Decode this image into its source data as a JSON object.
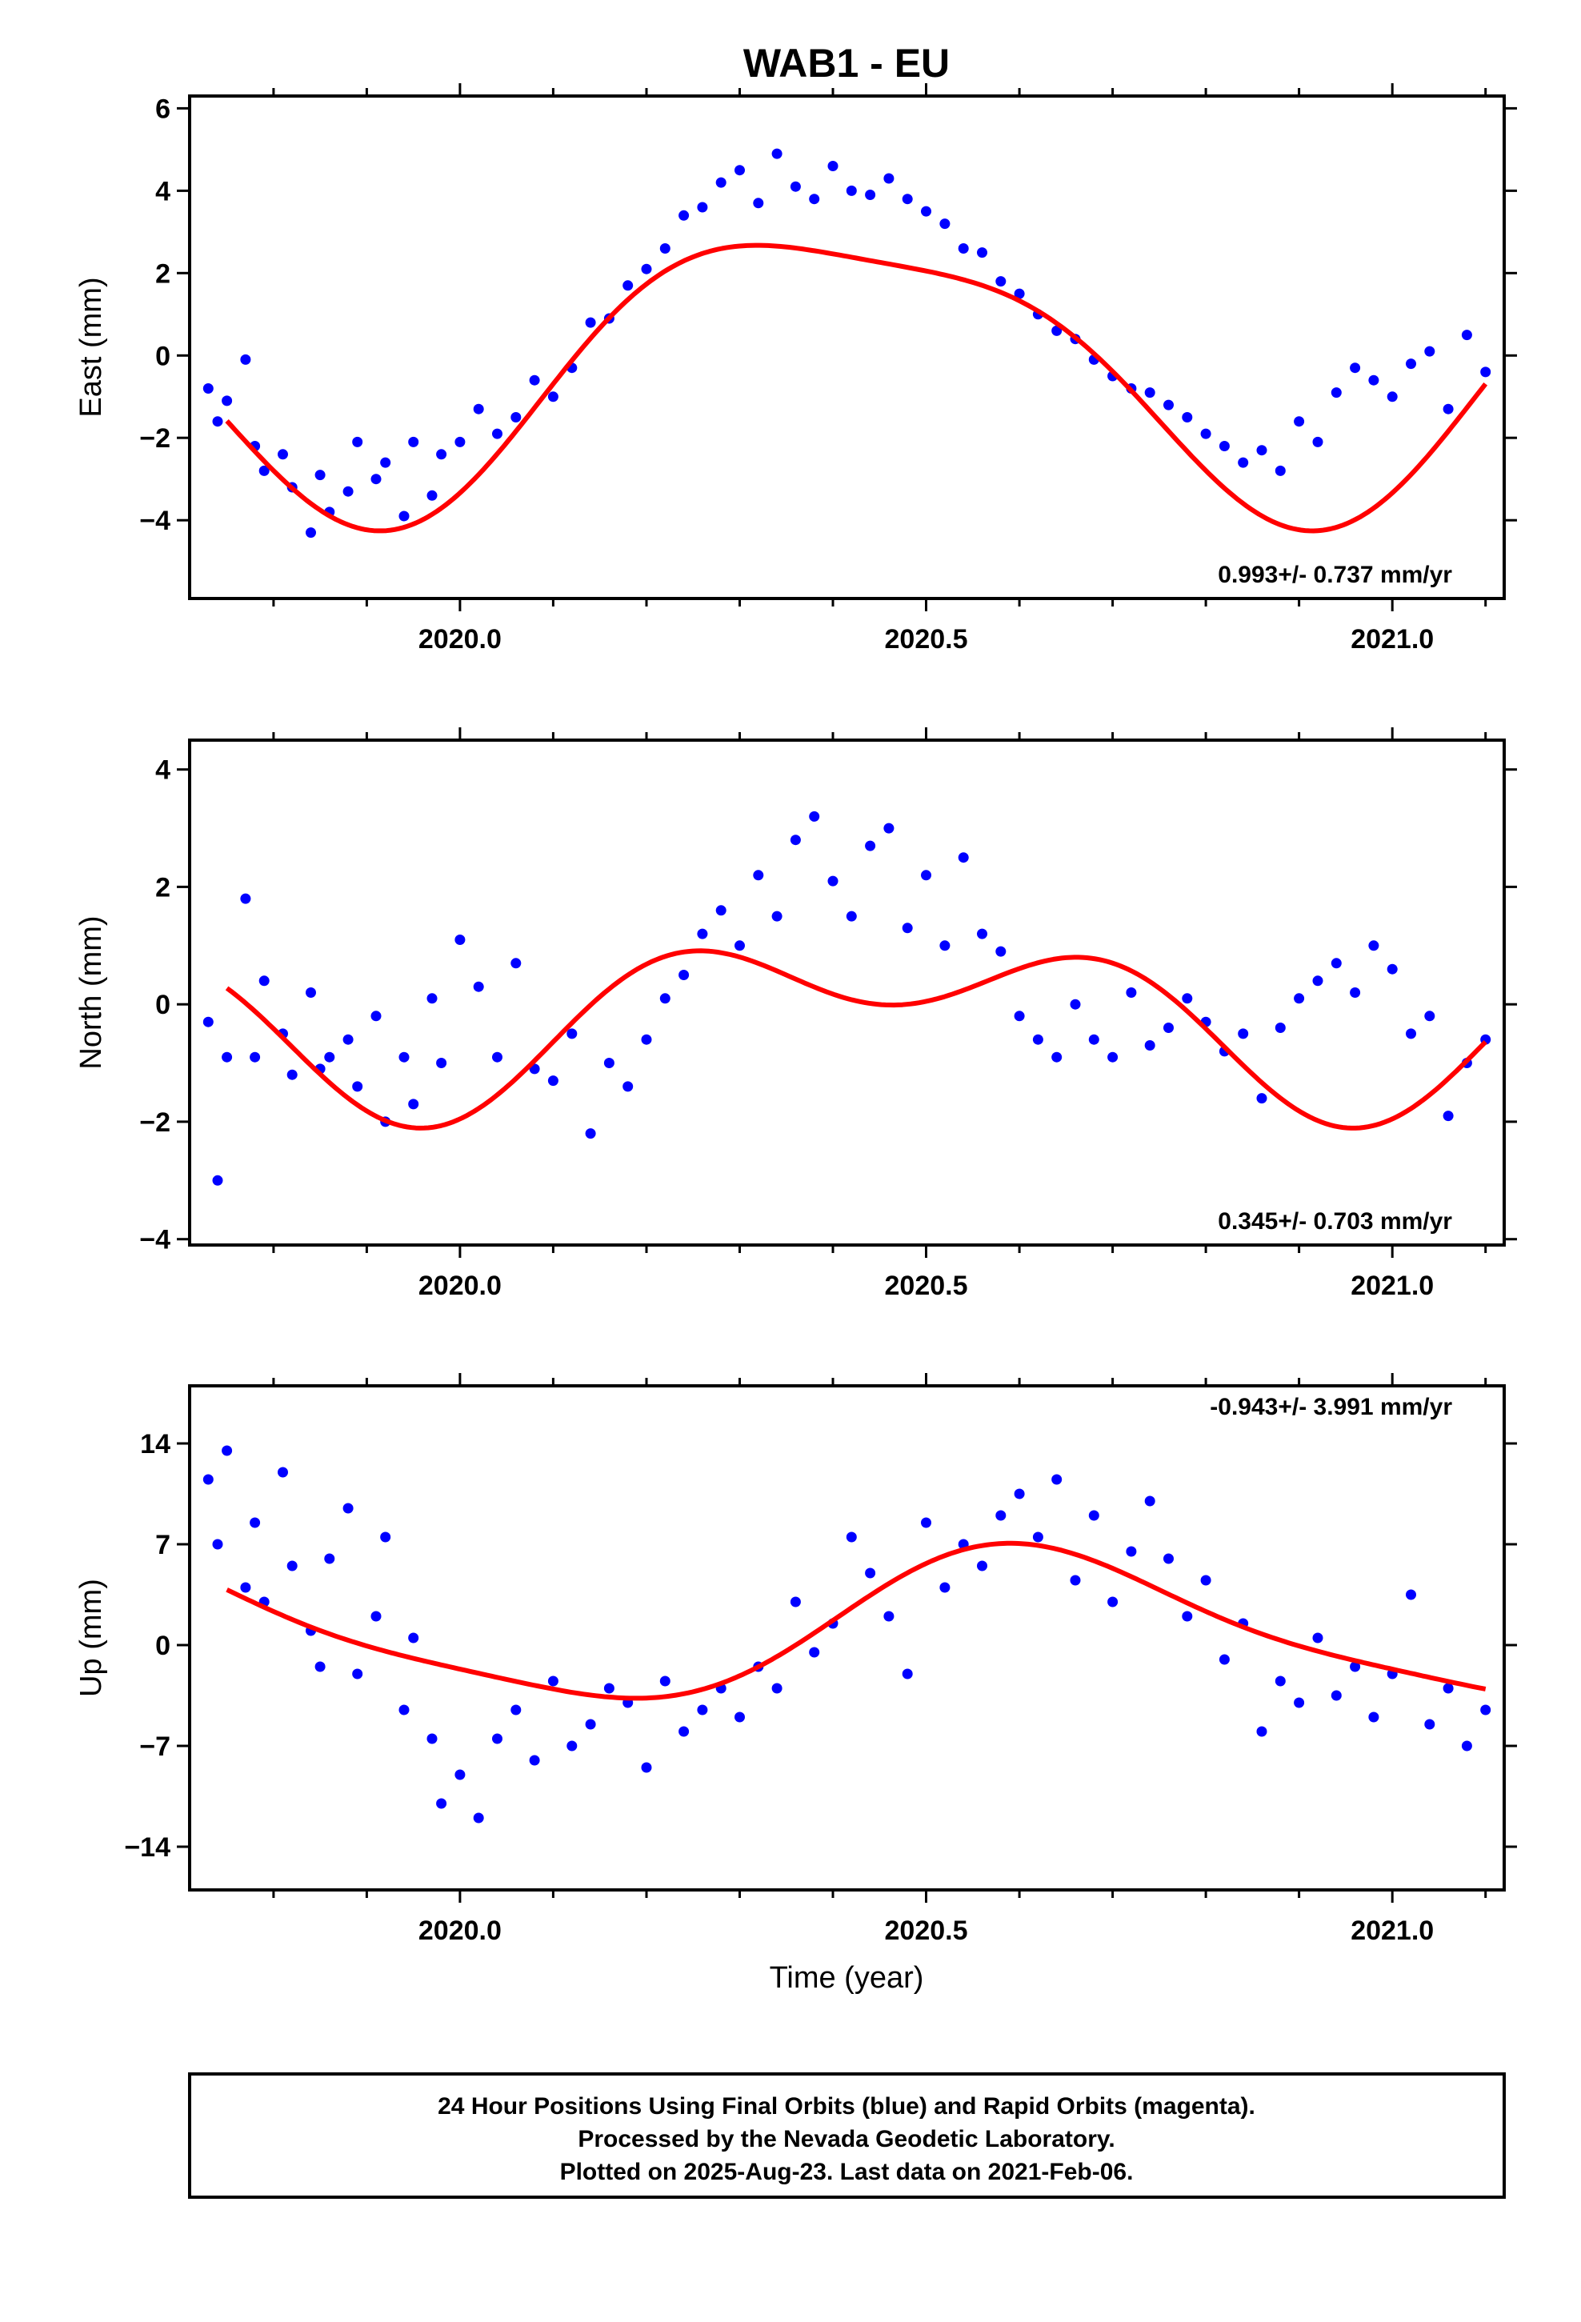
{
  "title": "WAB1 - EU",
  "xlabel": "Time (year)",
  "footer": {
    "line1": "24 Hour Positions Using Final Orbits (blue) and Rapid Orbits (magenta).",
    "line2": "Processed by the Nevada Geodetic Laboratory.",
    "line3": "Plotted on 2025-Aug-23. Last data on 2021-Feb-06."
  },
  "colors": {
    "points": "#0000ff",
    "fit": "#ff0000",
    "frame": "#000000"
  },
  "chart_data": [
    {
      "type": "scatter",
      "name": "east",
      "ylabel": "East (mm)",
      "rate_label": "0.993+/- 0.737 mm/yr",
      "xlim": [
        2019.71,
        2021.12
      ],
      "ylim": [
        -5.9,
        6.3
      ],
      "xticks": [
        2020.0,
        2020.5,
        2021.0
      ],
      "xtick_labels": [
        "2020.0",
        "2020.5",
        "2021.0"
      ],
      "yticks": [
        -4,
        -2,
        0,
        2,
        4,
        6
      ],
      "ytick_labels": [
        "−4",
        "−2",
        "0",
        "2",
        "4",
        "6"
      ],
      "points_x": [
        2019.73,
        2019.74,
        2019.75,
        2019.77,
        2019.78,
        2019.79,
        2019.81,
        2019.82,
        2019.84,
        2019.85,
        2019.86,
        2019.88,
        2019.89,
        2019.91,
        2019.92,
        2019.94,
        2019.95,
        2019.97,
        2019.98,
        2020.0,
        2020.02,
        2020.04,
        2020.06,
        2020.08,
        2020.1,
        2020.12,
        2020.14,
        2020.16,
        2020.18,
        2020.2,
        2020.22,
        2020.24,
        2020.26,
        2020.28,
        2020.3,
        2020.32,
        2020.34,
        2020.36,
        2020.38,
        2020.4,
        2020.42,
        2020.44,
        2020.46,
        2020.48,
        2020.5,
        2020.52,
        2020.54,
        2020.56,
        2020.58,
        2020.6,
        2020.62,
        2020.64,
        2020.66,
        2020.68,
        2020.7,
        2020.72,
        2020.74,
        2020.76,
        2020.78,
        2020.8,
        2020.82,
        2020.84,
        2020.86,
        2020.88,
        2020.9,
        2020.92,
        2020.94,
        2020.96,
        2020.98,
        2021.0,
        2021.02,
        2021.04,
        2021.06,
        2021.08,
        2021.1
      ],
      "points_y": [
        -0.8,
        -1.6,
        -1.1,
        -0.1,
        -2.2,
        -2.8,
        -2.4,
        -3.2,
        -4.3,
        -2.9,
        -3.8,
        -3.3,
        -2.1,
        -3.0,
        -2.6,
        -3.9,
        -2.1,
        -3.4,
        -2.4,
        -2.1,
        -1.3,
        -1.9,
        -1.5,
        -0.6,
        -1.0,
        -0.3,
        0.8,
        0.9,
        1.7,
        2.1,
        2.6,
        3.4,
        3.6,
        4.2,
        4.5,
        3.7,
        4.9,
        4.1,
        3.8,
        4.6,
        4.0,
        3.9,
        4.3,
        3.8,
        3.5,
        3.2,
        2.6,
        2.5,
        1.8,
        1.5,
        1.0,
        0.6,
        0.4,
        -0.1,
        -0.5,
        -0.8,
        -0.9,
        -1.2,
        -1.5,
        -1.9,
        -2.2,
        -2.6,
        -2.3,
        -2.8,
        -1.6,
        -2.1,
        -0.9,
        -0.3,
        -0.6,
        -1.0,
        -0.2,
        0.1,
        -1.3,
        0.5,
        -0.4
      ],
      "fit": {
        "offset": -0.12,
        "amp": 3.35,
        "phase": 0.3987,
        "amp2": 0.82,
        "phase2": 0.18
      }
    },
    {
      "type": "scatter",
      "name": "north",
      "ylabel": "North (mm)",
      "rate_label": "0.345+/- 0.703 mm/yr",
      "xlim": [
        2019.71,
        2021.12
      ],
      "ylim": [
        -4.1,
        4.5
      ],
      "xticks": [
        2020.0,
        2020.5,
        2021.0
      ],
      "xtick_labels": [
        "2020.0",
        "2020.5",
        "2021.0"
      ],
      "yticks": [
        -4,
        -2,
        0,
        2,
        4
      ],
      "ytick_labels": [
        "−4",
        "−2",
        "0",
        "2",
        "4"
      ],
      "points_x": [
        2019.73,
        2019.74,
        2019.75,
        2019.77,
        2019.78,
        2019.79,
        2019.81,
        2019.82,
        2019.84,
        2019.85,
        2019.86,
        2019.88,
        2019.89,
        2019.91,
        2019.92,
        2019.94,
        2019.95,
        2019.97,
        2019.98,
        2020.0,
        2020.02,
        2020.04,
        2020.06,
        2020.08,
        2020.1,
        2020.12,
        2020.14,
        2020.16,
        2020.18,
        2020.2,
        2020.22,
        2020.24,
        2020.26,
        2020.28,
        2020.3,
        2020.32,
        2020.34,
        2020.36,
        2020.38,
        2020.4,
        2020.42,
        2020.44,
        2020.46,
        2020.48,
        2020.5,
        2020.52,
        2020.54,
        2020.56,
        2020.58,
        2020.6,
        2020.62,
        2020.64,
        2020.66,
        2020.68,
        2020.7,
        2020.72,
        2020.74,
        2020.76,
        2020.78,
        2020.8,
        2020.82,
        2020.84,
        2020.86,
        2020.88,
        2020.9,
        2020.92,
        2020.94,
        2020.96,
        2020.98,
        2021.0,
        2021.02,
        2021.04,
        2021.06,
        2021.08,
        2021.1
      ],
      "points_y": [
        -0.3,
        -3.0,
        -0.9,
        1.8,
        -0.9,
        0.4,
        -0.5,
        -1.2,
        0.2,
        -1.1,
        -0.9,
        -0.6,
        -1.4,
        -0.2,
        -2.0,
        -0.9,
        -1.7,
        0.1,
        -1.0,
        1.1,
        0.3,
        -0.9,
        0.7,
        -1.1,
        -1.3,
        -0.5,
        -2.2,
        -1.0,
        -1.4,
        -0.6,
        0.1,
        0.5,
        1.2,
        1.6,
        1.0,
        2.2,
        1.5,
        2.8,
        3.2,
        2.1,
        1.5,
        2.7,
        3.0,
        1.3,
        2.2,
        1.0,
        2.5,
        1.2,
        0.9,
        -0.2,
        -0.6,
        -0.9,
        0.0,
        -0.6,
        -0.9,
        0.2,
        -0.7,
        -0.4,
        0.1,
        -0.3,
        -0.8,
        -0.5,
        -1.6,
        -0.4,
        0.1,
        0.4,
        0.7,
        0.2,
        1.0,
        0.6,
        -0.5,
        -0.2,
        -1.9,
        -1.0,
        -0.6
      ],
      "fit": {
        "offset": -0.18,
        "amp": 1.05,
        "phase": 0.4513,
        "amp2": 0.88,
        "phase2": 0.21
      }
    },
    {
      "type": "scatter",
      "name": "up",
      "ylabel": "Up (mm)",
      "rate_label": "-0.943+/- 3.991 mm/yr",
      "xlim": [
        2019.71,
        2021.12
      ],
      "ylim": [
        -17.0,
        18.0
      ],
      "xticks": [
        2020.0,
        2020.5,
        2021.0
      ],
      "xtick_labels": [
        "2020.0",
        "2020.5",
        "2021.0"
      ],
      "yticks": [
        -14,
        -7,
        0,
        7,
        14
      ],
      "ytick_labels": [
        "−14",
        "−7",
        "0",
        "7",
        "14"
      ],
      "points_x": [
        2019.73,
        2019.74,
        2019.75,
        2019.77,
        2019.78,
        2019.79,
        2019.81,
        2019.82,
        2019.84,
        2019.85,
        2019.86,
        2019.88,
        2019.89,
        2019.91,
        2019.92,
        2019.94,
        2019.95,
        2019.97,
        2019.98,
        2020.0,
        2020.02,
        2020.04,
        2020.06,
        2020.08,
        2020.1,
        2020.12,
        2020.14,
        2020.16,
        2020.18,
        2020.2,
        2020.22,
        2020.24,
        2020.26,
        2020.28,
        2020.3,
        2020.32,
        2020.34,
        2020.36,
        2020.38,
        2020.4,
        2020.42,
        2020.44,
        2020.46,
        2020.48,
        2020.5,
        2020.52,
        2020.54,
        2020.56,
        2020.58,
        2020.6,
        2020.62,
        2020.64,
        2020.66,
        2020.68,
        2020.7,
        2020.72,
        2020.74,
        2020.76,
        2020.78,
        2020.8,
        2020.82,
        2020.84,
        2020.86,
        2020.88,
        2020.9,
        2020.92,
        2020.94,
        2020.96,
        2020.98,
        2021.0,
        2021.02,
        2021.04,
        2021.06,
        2021.08,
        2021.1
      ],
      "points_y": [
        11.5,
        7.0,
        13.5,
        4.0,
        8.5,
        3.0,
        12.0,
        5.5,
        1.0,
        -1.5,
        6.0,
        9.5,
        -2.0,
        2.0,
        7.5,
        -4.5,
        0.5,
        -6.5,
        -11.0,
        -9.0,
        -12.0,
        -6.5,
        -4.5,
        -8.0,
        -2.5,
        -7.0,
        -5.5,
        -3.0,
        -4.0,
        -8.5,
        -2.5,
        -6.0,
        -4.5,
        -3.0,
        -5.0,
        -1.5,
        -3.0,
        3.0,
        -0.5,
        1.5,
        7.5,
        5.0,
        2.0,
        -2.0,
        8.5,
        4.0,
        7.0,
        5.5,
        9.0,
        10.5,
        7.5,
        11.5,
        4.5,
        9.0,
        3.0,
        6.5,
        10.0,
        6.0,
        2.0,
        4.5,
        -1.0,
        1.5,
        -6.0,
        -2.5,
        -4.0,
        0.5,
        -3.5,
        -1.5,
        -5.0,
        -2.0,
        3.5,
        -5.5,
        -3.0,
        -7.0,
        -4.5
      ],
      "fit": {
        "offset": 1.15,
        "amp": 5.1,
        "phase": 0.6222,
        "amp2": 1.05,
        "phase2": 0.55
      }
    }
  ]
}
